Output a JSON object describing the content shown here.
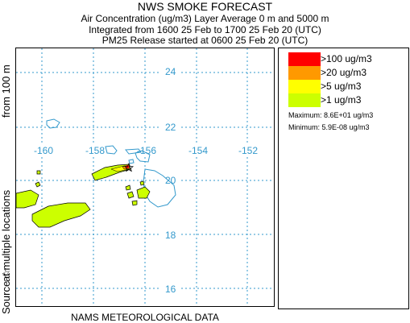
{
  "header": {
    "title": "NWS SMOKE FORECAST",
    "line1": "Air Concentration (ug/m3) Layer Average    0 m and  5000 m",
    "line2": "Integrated from 1600 25 Feb to 1700 25 Feb 20 (UTC)",
    "line3": "PM25 Release started at 0600 25 Feb 20 (UTC)"
  },
  "side": {
    "from_label": "from  100 m",
    "locations_label": "at multiple locations",
    "source_label": "Source ☆"
  },
  "map": {
    "lat_labels": [
      "24",
      "22",
      "20",
      "18",
      "16"
    ],
    "lon_labels": [
      "-160",
      "-158",
      "-156",
      "-154",
      "-152"
    ],
    "grid_color": "#3399cc",
    "coast_color": "#3399cc"
  },
  "footer": {
    "text": "NAMS METEOROLOGICAL DATA"
  },
  "legend": {
    "items": [
      {
        "label": ">100 ug/m3",
        "color": "#ff0000"
      },
      {
        "label": ">20 ug/m3",
        "color": "#ff9900"
      },
      {
        "label": ">5 ug/m3",
        "color": "#ffff00"
      },
      {
        "label": ">1 ug/m3",
        "color": "#ccff00"
      }
    ],
    "maximum": "Maximum: 8.6E+01 ug/m3",
    "minimum": "Minimum: 5.9E-08 ug/m3"
  }
}
